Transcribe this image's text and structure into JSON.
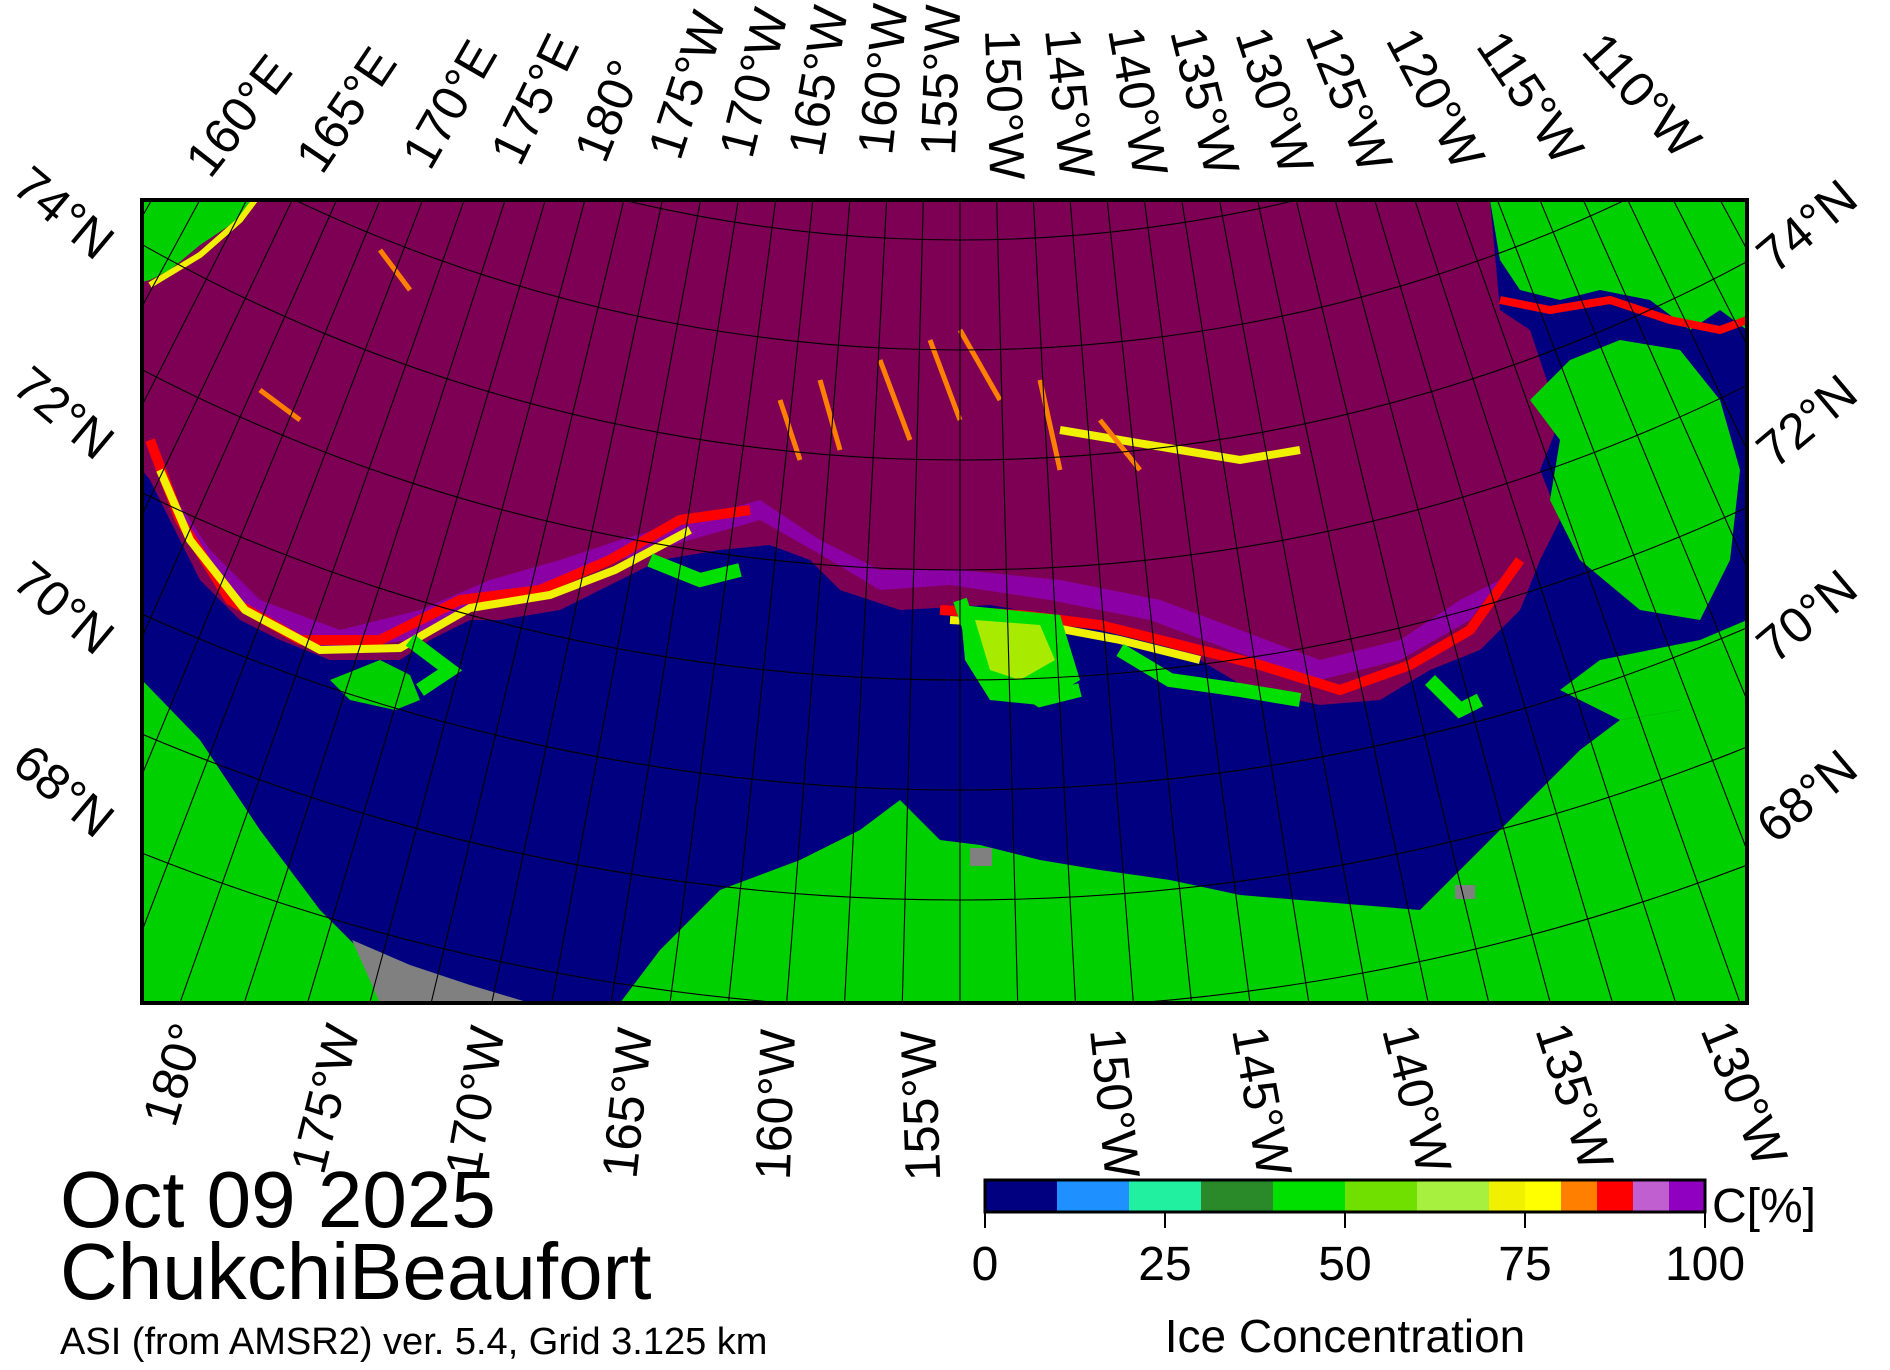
{
  "map": {
    "date": "Oct 09 2025",
    "region": "ChukchiBeaufort",
    "source": "ASI (from AMSR2) ver. 5.4,  Grid 3.125 km",
    "colors": {
      "open_water": "#000080",
      "land": "#00d000",
      "no_data": "#808080",
      "pack_ice": "#7d0054",
      "frame": "#000000"
    },
    "top_labels": [
      "160°E",
      "165°E",
      "170°E",
      "175°E",
      "180°",
      "175°W",
      "170°W",
      "165°W",
      "160°W",
      "155°W",
      "150°W",
      "145°W",
      "140°W",
      "135°W",
      "130°W",
      "125°W",
      "120°W",
      "115°W",
      "110°W"
    ],
    "bottom_labels": [
      "180°",
      "175°W",
      "170°W",
      "165°W",
      "160°W",
      "155°W",
      "150°W",
      "145°W",
      "140°W",
      "135°W",
      "130°W"
    ],
    "left_labels": [
      "74°N",
      "72°N",
      "70°N",
      "68°N"
    ],
    "right_labels": [
      "74°N",
      "72°N",
      "70°N",
      "68°N"
    ]
  },
  "colorbar": {
    "title": "Ice Concentration",
    "unit": "C[%]",
    "ticks": [
      "0",
      "25",
      "50",
      "75",
      "100"
    ],
    "bins": [
      {
        "from": 0,
        "to": 10,
        "color": "#000080"
      },
      {
        "from": 10,
        "to": 20,
        "color": "#1e90ff"
      },
      {
        "from": 20,
        "to": 30,
        "color": "#20f0a0"
      },
      {
        "from": 30,
        "to": 40,
        "color": "#2a8a2a"
      },
      {
        "from": 40,
        "to": 50,
        "color": "#00e000"
      },
      {
        "from": 50,
        "to": 60,
        "color": "#70e000"
      },
      {
        "from": 60,
        "to": 70,
        "color": "#a8f040"
      },
      {
        "from": 70,
        "to": 75,
        "color": "#f0f000"
      },
      {
        "from": 75,
        "to": 80,
        "color": "#ffff00"
      },
      {
        "from": 80,
        "to": 85,
        "color": "#ff8000"
      },
      {
        "from": 85,
        "to": 90,
        "color": "#ff0000"
      },
      {
        "from": 90,
        "to": 95,
        "color": "#c060d0"
      },
      {
        "from": 95,
        "to": 100,
        "color": "#9000c0"
      }
    ]
  }
}
